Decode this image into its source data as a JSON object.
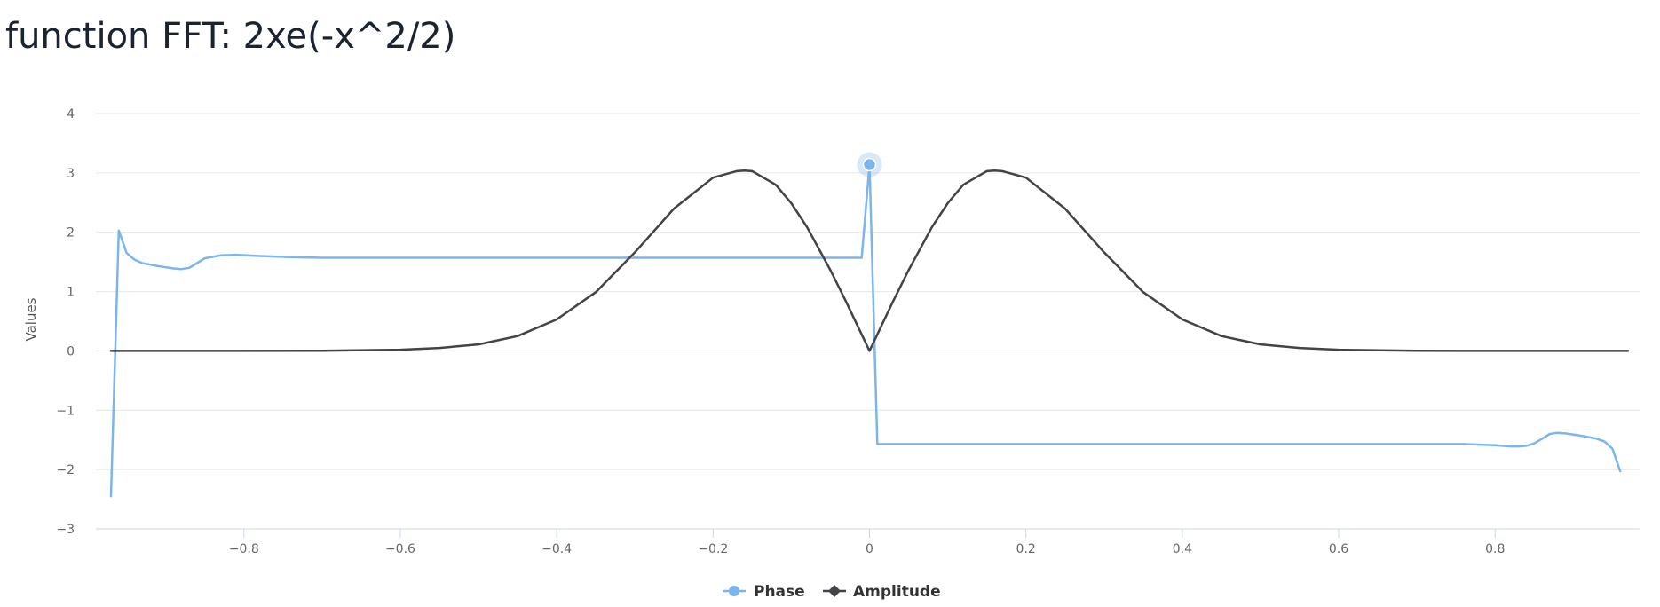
{
  "page": {
    "title": "function FFT: 2xe(-x^2/2)"
  },
  "chart_data": {
    "type": "line",
    "title": "function FFT: 2xe(-x^2/2)",
    "xlabel": "",
    "ylabel": "Values",
    "xlim": [
      -0.97,
      0.97
    ],
    "ylim": [
      -3,
      4
    ],
    "xticks": [
      -0.8,
      -0.6,
      -0.4,
      -0.2,
      0,
      0.2,
      0.4,
      0.6,
      0.8
    ],
    "yticks": [
      -3,
      -2,
      -1,
      0,
      1,
      2,
      3,
      4
    ],
    "xtick_labels": [
      "−0.8",
      "−0.6",
      "−0.4",
      "−0.2",
      "0",
      "0.2",
      "0.4",
      "0.6",
      "0.8"
    ],
    "ytick_labels": [
      "−3",
      "−2",
      "−1",
      "0",
      "1",
      "2",
      "3",
      "4"
    ],
    "grid": true,
    "legend_position": "bottom-center",
    "series": [
      {
        "name": "Phase",
        "color": "#7cb5ec",
        "marker": "circle",
        "x": [
          -0.97,
          -0.96,
          -0.95,
          -0.94,
          -0.93,
          -0.91,
          -0.89,
          -0.88,
          -0.87,
          -0.86,
          -0.85,
          -0.83,
          -0.81,
          -0.78,
          -0.74,
          -0.7,
          -0.65,
          -0.5,
          -0.3,
          -0.1,
          -0.01,
          0.0,
          0.01,
          0.2,
          0.4,
          0.6,
          0.7,
          0.76,
          0.8,
          0.82,
          0.83,
          0.84,
          0.85,
          0.86,
          0.87,
          0.88,
          0.89,
          0.91,
          0.93,
          0.94,
          0.95,
          0.96
        ],
        "y": [
          -2.45,
          2.03,
          1.65,
          1.54,
          1.48,
          1.43,
          1.39,
          1.38,
          1.4,
          1.48,
          1.56,
          1.61,
          1.62,
          1.6,
          1.58,
          1.57,
          1.57,
          1.57,
          1.57,
          1.57,
          1.57,
          3.14,
          -1.57,
          -1.57,
          -1.57,
          -1.57,
          -1.57,
          -1.57,
          -1.59,
          -1.61,
          -1.61,
          -1.6,
          -1.56,
          -1.48,
          -1.4,
          -1.38,
          -1.39,
          -1.43,
          -1.48,
          -1.53,
          -1.65,
          -2.03
        ]
      },
      {
        "name": "Amplitude",
        "color": "#434348",
        "marker": "diamond",
        "x": [
          -0.97,
          -0.7,
          -0.6,
          -0.55,
          -0.5,
          -0.45,
          -0.4,
          -0.35,
          -0.3,
          -0.25,
          -0.2,
          -0.17,
          -0.16,
          -0.15,
          -0.12,
          -0.1,
          -0.08,
          -0.05,
          -0.03,
          0.0,
          0.03,
          0.05,
          0.08,
          0.1,
          0.12,
          0.15,
          0.16,
          0.17,
          0.2,
          0.25,
          0.3,
          0.35,
          0.4,
          0.45,
          0.5,
          0.55,
          0.6,
          0.7,
          0.97
        ],
        "y": [
          0.0,
          0.002,
          0.02,
          0.05,
          0.11,
          0.25,
          0.53,
          0.99,
          1.66,
          2.4,
          2.92,
          3.03,
          3.04,
          3.03,
          2.8,
          2.49,
          2.09,
          1.36,
          0.83,
          0.0,
          0.83,
          1.36,
          2.09,
          2.49,
          2.8,
          3.03,
          3.04,
          3.03,
          2.92,
          2.4,
          1.66,
          0.99,
          0.53,
          0.25,
          0.11,
          0.05,
          0.02,
          0.002,
          0.0
        ]
      }
    ],
    "highlighted_point": {
      "series": "Phase",
      "x": 0,
      "y": 3.14
    }
  }
}
